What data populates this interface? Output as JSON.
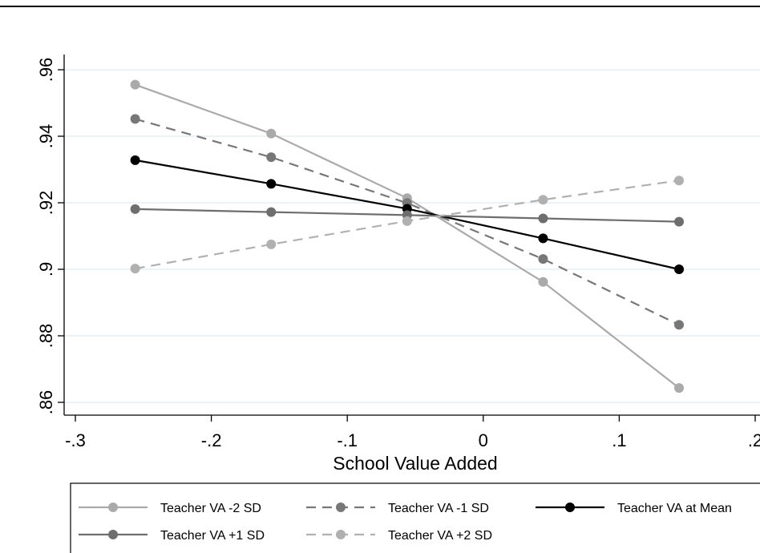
{
  "chart_data": {
    "type": "line",
    "xlabel": "School Value Added",
    "ylabel": "",
    "xlim": [
      -0.3,
      0.2
    ],
    "ylim": [
      0.86,
      0.96
    ],
    "x_ticks": [
      {
        "value": -0.3,
        "label": "-.3"
      },
      {
        "value": -0.2,
        "label": "-.2"
      },
      {
        "value": -0.1,
        "label": "-.1"
      },
      {
        "value": 0,
        "label": "0"
      },
      {
        "value": 0.1,
        "label": ".1"
      },
      {
        "value": 0.2,
        "label": ".2"
      }
    ],
    "y_ticks": [
      {
        "value": 0.86,
        "label": ".86"
      },
      {
        "value": 0.88,
        "label": ".88"
      },
      {
        "value": 0.9,
        "label": ".9"
      },
      {
        "value": 0.92,
        "label": ".92"
      },
      {
        "value": 0.94,
        "label": ".94"
      },
      {
        "value": 0.96,
        "label": ".96"
      }
    ],
    "grid": "horizontal",
    "legend_position": "bottom",
    "x": [
      -0.256,
      -0.156,
      -0.056,
      0.044,
      0.144
    ],
    "series": [
      {
        "name": "Teacher VA -2 SD",
        "values": [
          0.9555,
          0.9408,
          0.9214,
          0.8962,
          0.8643
        ],
        "color": "#aaaaaa",
        "dash": "solid"
      },
      {
        "name": "Teacher VA -1 SD",
        "values": [
          0.9452,
          0.9337,
          0.9199,
          0.9031,
          0.8833
        ],
        "color": "#777777",
        "dash": "dashed"
      },
      {
        "name": "Teacher VA at Mean",
        "values": [
          0.9328,
          0.9257,
          0.9182,
          0.9093,
          0.9
        ],
        "color": "#000000",
        "dash": "solid"
      },
      {
        "name": "Teacher VA +1 SD",
        "values": [
          0.9181,
          0.9172,
          0.9163,
          0.9153,
          0.9143
        ],
        "color": "#6e6e6e",
        "dash": "solid"
      },
      {
        "name": "Teacher VA +2 SD",
        "values": [
          0.9002,
          0.9075,
          0.9145,
          0.9209,
          0.9267
        ],
        "color": "#b0b0b0",
        "dash": "dashed"
      }
    ]
  }
}
